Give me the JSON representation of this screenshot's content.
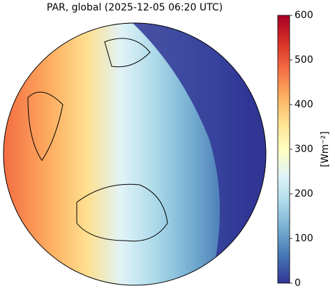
{
  "title": "PAR, global (2025-12-05 06:20 UTC)",
  "colorbar": {
    "label": "[Wm⁻²]",
    "lim": [
      0,
      600
    ],
    "ticks": [
      0,
      100,
      200,
      300,
      400,
      500,
      600
    ]
  }
}
